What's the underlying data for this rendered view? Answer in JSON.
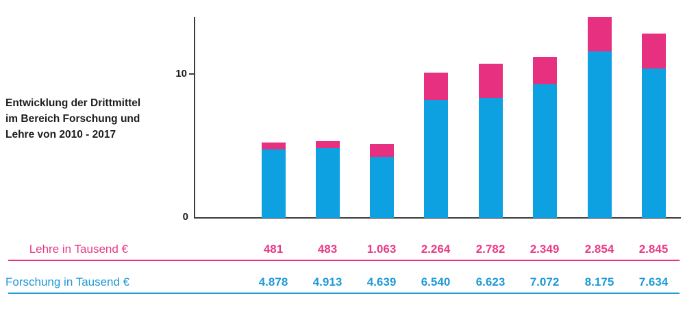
{
  "chart_data": {
    "type": "stacked-bar",
    "title": "Entwicklung der Drittmittel im Bereich Forschung und Lehre von 2010 - 2017",
    "title_lines": [
      "Entwicklung der Drittmittel",
      "im Bereich Forschung und",
      "Lehre von 2010 - 2017"
    ],
    "y_axis": {
      "tick_labels": [
        "0",
        "10"
      ],
      "tick_values": [
        0,
        10
      ]
    },
    "series": [
      {
        "name": "Lehre",
        "row_label": "Lehre in Tausend €",
        "color": "#e7307f",
        "values": [
          481,
          483,
          1063,
          2264,
          2782,
          2349,
          2854,
          2845
        ],
        "display_values": [
          "481",
          "483",
          "1.063",
          "2.264",
          "2.782",
          "2.349",
          "2.854",
          "2.845"
        ]
      },
      {
        "name": "Forschung",
        "row_label": "Forschung in Tausend €",
        "color": "#0da1e2",
        "values": [
          4878,
          4913,
          4639,
          6540,
          6623,
          7072,
          8175,
          7634
        ],
        "display_values": [
          "4.878",
          "4.913",
          "4.639",
          "6.540",
          "6.623",
          "7.072",
          "8.175",
          "7.634"
        ]
      }
    ],
    "bars_as_drawn_axis_units": {
      "forschung": [
        4.75,
        4.85,
        4.25,
        8.2,
        8.35,
        9.3,
        11.55,
        10.4
      ],
      "lehre": [
        0.5,
        0.5,
        0.9,
        1.9,
        2.35,
        1.9,
        2.4,
        2.4
      ]
    },
    "colors": {
      "lehre_pink": "#e7307f",
      "forschung_blue": "#0da1e2",
      "pink_text": "#e73b86",
      "blue_text": "#1f99d6",
      "axis": "#3c3c3b",
      "dark_text": "#1d1d1b",
      "background": "#ffffff"
    }
  }
}
